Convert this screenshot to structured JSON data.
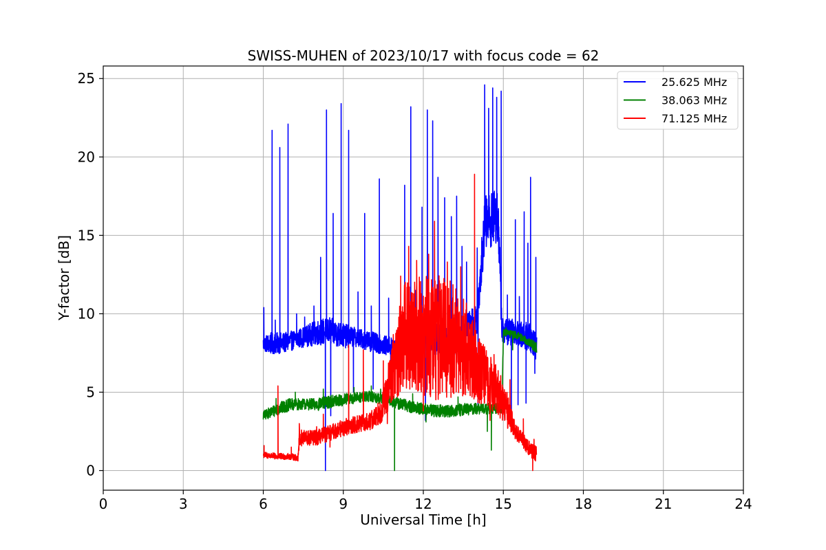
{
  "chart_data": {
    "type": "line",
    "title": "SWISS-MUHEN of 2023/10/17 with focus code = 62",
    "xlabel": "Universal Time [h]",
    "ylabel": "Y-factor [dB]",
    "xlim": [
      0,
      24
    ],
    "ylim": [
      -1.25,
      25.8
    ],
    "xticks": [
      0,
      3,
      6,
      9,
      12,
      15,
      18,
      21,
      24
    ],
    "yticks": [
      0,
      5,
      10,
      15,
      20,
      25
    ],
    "xtick_labels": [
      "0",
      "3",
      "6",
      "9",
      "12",
      "15",
      "18",
      "21",
      "24"
    ],
    "ytick_labels": [
      "0",
      "5",
      "10",
      "15",
      "20",
      "25"
    ],
    "grid": true,
    "legend_position": "top-right",
    "series": [
      {
        "name": "25.625 MHz",
        "color": "#0000ff",
        "band": [
          [
            6.0,
            7.6,
            8.6
          ],
          [
            6.3,
            7.4,
            8.8
          ],
          [
            6.8,
            7.5,
            8.8
          ],
          [
            7.3,
            7.8,
            9.0
          ],
          [
            8.0,
            8.0,
            9.6
          ],
          [
            8.5,
            8.0,
            9.8
          ],
          [
            9.0,
            7.8,
            9.4
          ],
          [
            9.5,
            7.9,
            9.1
          ],
          [
            10.0,
            7.6,
            8.9
          ],
          [
            10.5,
            7.4,
            8.6
          ],
          [
            11.0,
            7.3,
            8.5
          ],
          [
            11.5,
            7.6,
            9.5
          ],
          [
            12.0,
            7.4,
            9.6
          ],
          [
            12.5,
            7.3,
            9.4
          ],
          [
            13.0,
            7.1,
            9.2
          ],
          [
            13.5,
            7.6,
            9.8
          ],
          [
            14.0,
            8.6,
            10.8
          ],
          [
            14.3,
            14.0,
            17.5
          ],
          [
            14.8,
            14.5,
            18.0
          ],
          [
            14.95,
            8.0,
            9.8
          ],
          [
            15.5,
            8.0,
            9.6
          ],
          [
            16.0,
            7.6,
            9.4
          ],
          [
            16.25,
            7.0,
            8.8
          ]
        ],
        "spikes": [
          [
            6.02,
            10.4
          ],
          [
            6.33,
            21.7
          ],
          [
            6.45,
            9.6
          ],
          [
            6.62,
            20.6
          ],
          [
            6.93,
            22.1
          ],
          [
            7.25,
            10.0
          ],
          [
            7.55,
            9.8
          ],
          [
            7.9,
            10.5
          ],
          [
            8.15,
            13.6
          ],
          [
            8.37,
            23.0
          ],
          [
            8.62,
            16.4
          ],
          [
            8.92,
            23.4
          ],
          [
            9.2,
            21.7
          ],
          [
            9.55,
            11.4
          ],
          [
            9.8,
            16.4
          ],
          [
            10.05,
            10.5
          ],
          [
            10.35,
            18.6
          ],
          [
            10.7,
            11.0
          ],
          [
            11.3,
            18.2
          ],
          [
            11.53,
            23.2
          ],
          [
            11.7,
            11.5
          ],
          [
            11.95,
            16.8
          ],
          [
            12.15,
            23.0
          ],
          [
            12.35,
            22.3
          ],
          [
            12.55,
            18.7
          ],
          [
            12.8,
            17.4
          ],
          [
            13.05,
            16.2
          ],
          [
            13.25,
            17.5
          ],
          [
            13.45,
            14.3
          ],
          [
            13.62,
            13.3
          ],
          [
            14.02,
            14.2
          ],
          [
            14.3,
            24.6
          ],
          [
            14.45,
            23.1
          ],
          [
            14.6,
            24.4
          ],
          [
            14.75,
            23.8
          ],
          [
            14.92,
            24.2
          ],
          [
            15.15,
            11.2
          ],
          [
            15.45,
            16.0
          ],
          [
            15.6,
            11.1
          ],
          [
            15.78,
            16.5
          ],
          [
            15.92,
            14.5
          ],
          [
            16.02,
            18.7
          ],
          [
            16.22,
            13.6
          ]
        ],
        "dips": [
          [
            8.33,
            0.0
          ],
          [
            8.53,
            3.5
          ],
          [
            9.38,
            5.0
          ],
          [
            10.12,
            5.2
          ],
          [
            10.78,
            5.5
          ],
          [
            12.08,
            3.2
          ],
          [
            14.05,
            4.0
          ],
          [
            15.3,
            3.8
          ],
          [
            15.55,
            4.2
          ],
          [
            15.85,
            4.3
          ],
          [
            16.18,
            6.2
          ]
        ]
      },
      {
        "name": "38.063 MHz",
        "color": "#008000",
        "band": [
          [
            6.0,
            3.2,
            3.8
          ],
          [
            6.5,
            3.5,
            4.3
          ],
          [
            7.0,
            3.8,
            4.6
          ],
          [
            7.5,
            3.9,
            4.6
          ],
          [
            8.0,
            3.8,
            4.6
          ],
          [
            8.5,
            4.0,
            4.8
          ],
          [
            9.0,
            4.1,
            4.9
          ],
          [
            9.5,
            4.3,
            5.0
          ],
          [
            10.0,
            4.4,
            5.1
          ],
          [
            10.5,
            4.2,
            4.9
          ],
          [
            11.0,
            3.9,
            4.7
          ],
          [
            11.5,
            3.7,
            4.5
          ],
          [
            12.0,
            3.5,
            4.3
          ],
          [
            12.5,
            3.4,
            4.2
          ],
          [
            13.0,
            3.4,
            4.2
          ],
          [
            13.5,
            3.5,
            4.3
          ],
          [
            14.0,
            3.6,
            4.3
          ],
          [
            14.5,
            3.6,
            4.3
          ],
          [
            14.95,
            3.6,
            4.3
          ],
          [
            15.0,
            8.6,
            9.0
          ],
          [
            15.5,
            8.4,
            8.9
          ],
          [
            16.0,
            7.9,
            8.4
          ],
          [
            16.25,
            7.4,
            8.2
          ]
        ],
        "spikes": [
          [
            6.48,
            4.6
          ],
          [
            7.2,
            5.0
          ],
          [
            8.25,
            5.2
          ],
          [
            9.4,
            5.3
          ],
          [
            10.05,
            5.4
          ],
          [
            10.4,
            5.2
          ],
          [
            11.6,
            4.9
          ],
          [
            13.3,
            4.7
          ],
          [
            14.5,
            4.8
          ],
          [
            15.1,
            9.1
          ]
        ],
        "dips": [
          [
            10.92,
            0.0
          ],
          [
            12.1,
            3.1
          ],
          [
            14.4,
            2.5
          ],
          [
            14.55,
            1.3
          ],
          [
            15.35,
            7.7
          ]
        ]
      },
      {
        "name": "71.125 MHz",
        "color": "#ff0000",
        "band": [
          [
            6.0,
            0.8,
            1.2
          ],
          [
            6.5,
            0.7,
            1.1
          ],
          [
            7.0,
            0.7,
            1.1
          ],
          [
            7.3,
            0.6,
            1.0
          ],
          [
            7.35,
            1.5,
            2.6
          ],
          [
            8.0,
            1.6,
            2.6
          ],
          [
            8.5,
            1.9,
            2.9
          ],
          [
            9.0,
            2.2,
            3.3
          ],
          [
            9.5,
            2.4,
            3.5
          ],
          [
            10.0,
            2.5,
            3.7
          ],
          [
            10.4,
            3.0,
            4.5
          ],
          [
            10.6,
            3.5,
            6.0
          ],
          [
            10.9,
            4.5,
            9.0
          ],
          [
            11.3,
            5.0,
            12.0
          ],
          [
            11.8,
            5.0,
            12.5
          ],
          [
            12.3,
            4.5,
            12.6
          ],
          [
            12.8,
            4.5,
            12.6
          ],
          [
            13.3,
            4.8,
            11.5
          ],
          [
            13.8,
            4.5,
            10.2
          ],
          [
            14.3,
            4.0,
            8.0
          ],
          [
            14.8,
            3.5,
            6.5
          ],
          [
            15.2,
            2.6,
            4.8
          ],
          [
            15.5,
            1.9,
            2.9
          ],
          [
            15.8,
            1.3,
            2.3
          ],
          [
            16.0,
            0.9,
            1.9
          ],
          [
            16.25,
            0.5,
            1.6
          ]
        ],
        "spikes": [
          [
            6.03,
            1.6
          ],
          [
            6.55,
            5.4
          ],
          [
            7.05,
            1.5
          ],
          [
            7.35,
            3.0
          ],
          [
            8.0,
            2.8
          ],
          [
            8.25,
            3.6
          ],
          [
            9.2,
            8.0
          ],
          [
            9.75,
            7.7
          ],
          [
            10.3,
            4.3
          ],
          [
            10.5,
            7.0
          ],
          [
            11.15,
            12.4
          ],
          [
            11.45,
            14.3
          ],
          [
            11.75,
            13.4
          ],
          [
            12.2,
            13.8
          ],
          [
            12.42,
            15.9
          ],
          [
            12.9,
            13.3
          ],
          [
            13.4,
            13.0
          ],
          [
            13.92,
            18.9
          ],
          [
            14.1,
            8.4
          ],
          [
            14.65,
            7.4
          ],
          [
            15.25,
            5.8
          ],
          [
            15.75,
            3.3
          ],
          [
            16.15,
            2.0
          ]
        ],
        "dips": [
          [
            8.5,
            1.5
          ],
          [
            10.65,
            3.0
          ],
          [
            12.0,
            3.8
          ],
          [
            14.5,
            3.2
          ],
          [
            16.1,
            0.0
          ]
        ]
      }
    ]
  }
}
